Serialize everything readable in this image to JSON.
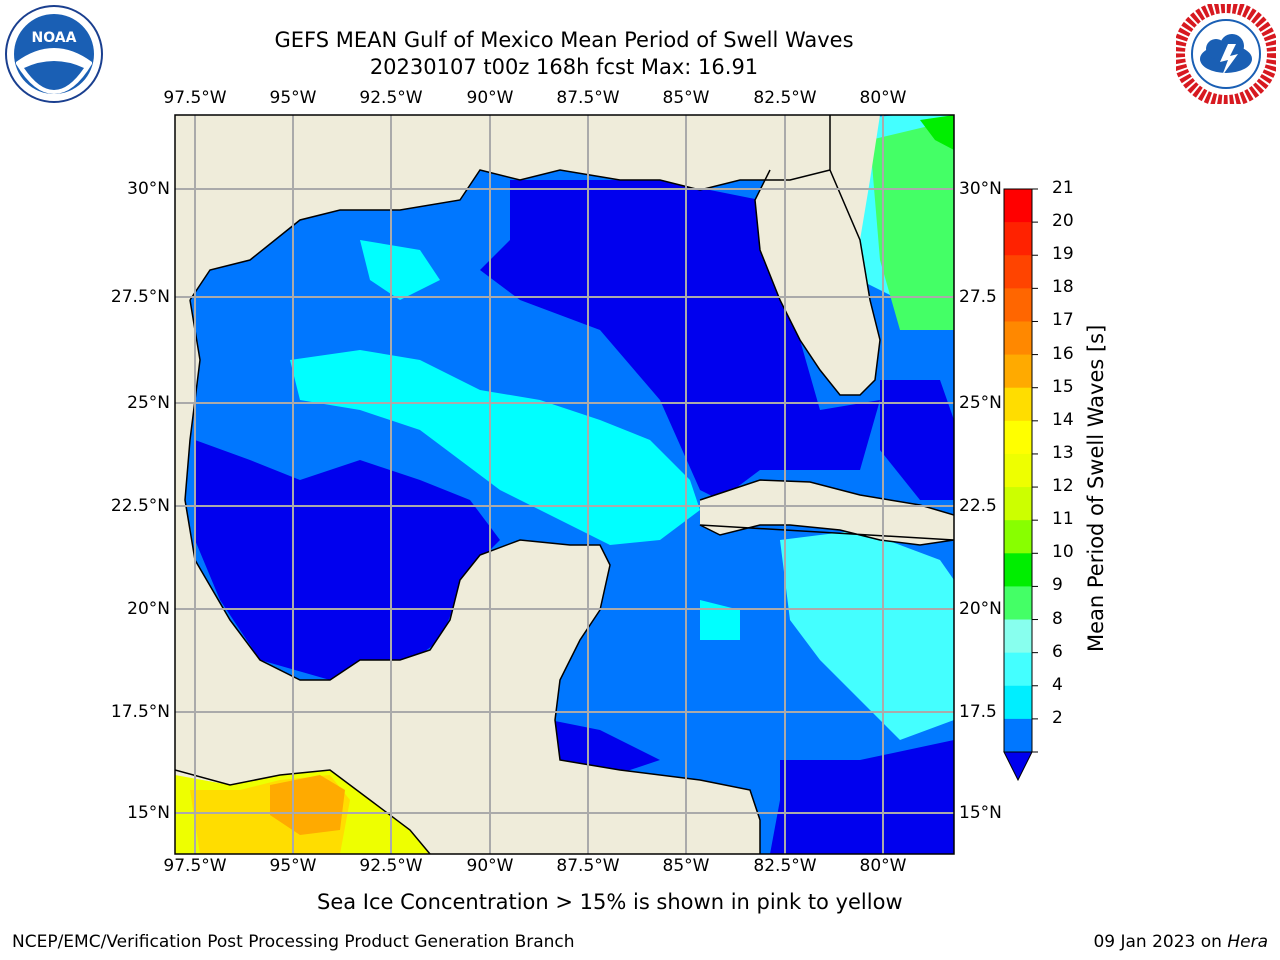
{
  "header": {
    "title_line1": "GEFS MEAN Gulf of Mexico Mean Period of Swell Waves",
    "title_line2": "20230107 t00z 168h fcst   Max: 16.91"
  },
  "logos": {
    "left": "NOAA",
    "right": "NATIONAL WEATHER SERVICE"
  },
  "axes": {
    "lon_labels": [
      "97.5°W",
      "95°W",
      "92.5°W",
      "90°W",
      "87.5°W",
      "85°W",
      "82.5°W",
      "80°W"
    ],
    "lat_labels_left": [
      "30°N",
      "27.5°N",
      "25°N",
      "22.5°N",
      "20°N",
      "17.5°N",
      "15°N"
    ],
    "lat_labels_right": [
      "30°N",
      "27.5",
      "25°N",
      "22.5",
      "20°N",
      "17.5",
      "15°N"
    ]
  },
  "colorbar": {
    "label": "Mean Period of Swell Waves [s]",
    "ticks": [
      "21",
      "20",
      "19",
      "18",
      "17",
      "16",
      "15",
      "14",
      "13",
      "12",
      "11",
      "10",
      "9",
      "8",
      "6",
      "4",
      "2"
    ],
    "colors": [
      "#ff0000",
      "#ff2200",
      "#ff4400",
      "#ff6600",
      "#ff8800",
      "#ffaa00",
      "#ffdd00",
      "#ffff00",
      "#eeff00",
      "#ccff00",
      "#88ff00",
      "#00ee00",
      "#44ff66",
      "#88ffee",
      "#44ffff",
      "#00eeff",
      "#0077ff"
    ]
  },
  "note": "Sea Ice Concentration > 15% is shown in pink to yellow",
  "footer": {
    "left": "NCEP/EMC/Verification Post Processing Product Generation Branch",
    "right_prefix": "09 Jan 2023 on ",
    "right_host": "Hera"
  }
}
